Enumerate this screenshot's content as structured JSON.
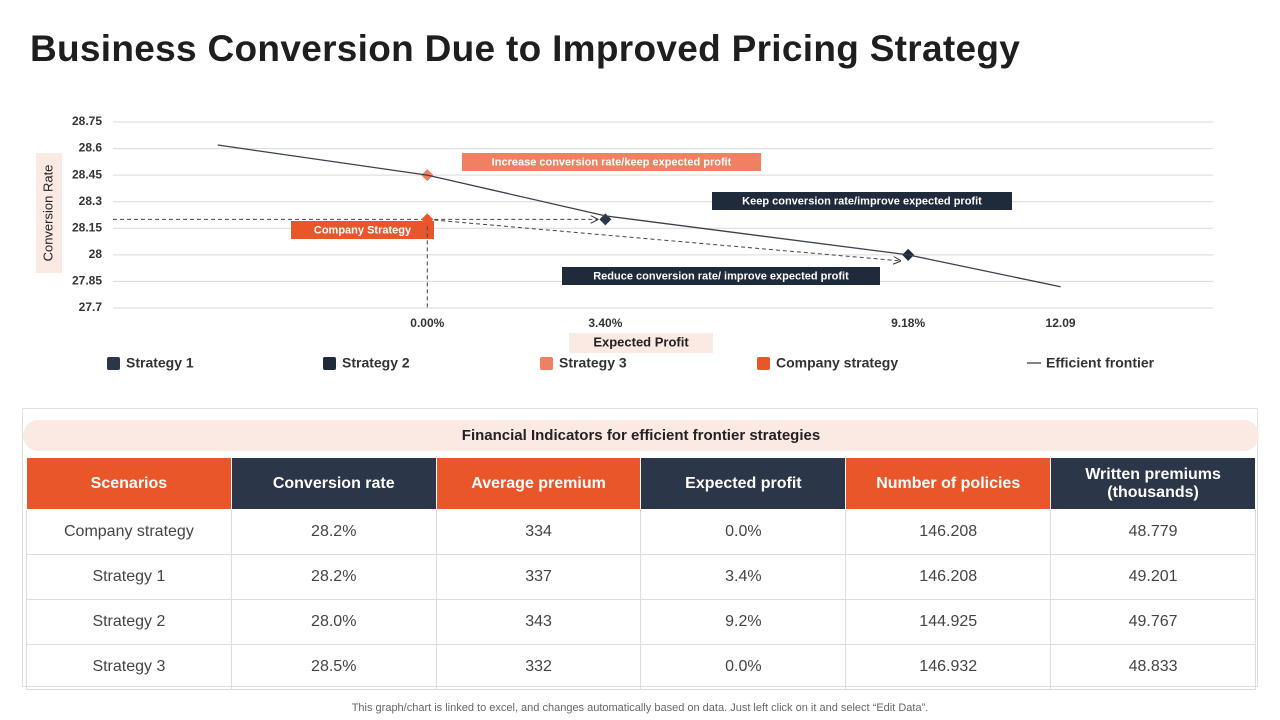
{
  "title": "Business Conversion Due to Improved Pricing Strategy",
  "chart_data": {
    "type": "scatter",
    "x_label": "Expected Profit",
    "y_label": "Conversion Rate",
    "xlim": [
      -6,
      15
    ],
    "xticks": [
      {
        "value": 0,
        "label": "0.00%"
      },
      {
        "value": 3.4,
        "label": "3.40%"
      },
      {
        "value": 9.18,
        "label": "9.18%"
      },
      12.09
    ],
    "ylim": [
      27.7,
      28.75
    ],
    "yticks": [
      27.7,
      27.85,
      28,
      28.15,
      28.3,
      28.45,
      28.6,
      28.75
    ],
    "grid": true,
    "series": [
      {
        "name": "Strategy 1",
        "type": "scatter",
        "color": "#2b3648",
        "x": [
          3.4
        ],
        "values": [
          28.2
        ]
      },
      {
        "name": "Strategy 2",
        "type": "scatter",
        "color": "#1f2a3a",
        "x": [
          9.18
        ],
        "values": [
          28
        ]
      },
      {
        "name": "Strategy 3",
        "type": "scatter",
        "color": "#f08062",
        "x": [
          0
        ],
        "values": [
          28.45
        ]
      },
      {
        "name": "Company strategy",
        "type": "scatter",
        "color": "#e8562a",
        "x": [
          0
        ],
        "values": [
          28.2
        ]
      },
      {
        "name": "Efficient frontier",
        "type": "line",
        "color": "#3a3f4a",
        "x": [
          -4,
          0,
          3.4,
          9.18,
          12.09
        ],
        "values": [
          28.62,
          28.45,
          28.22,
          28,
          27.82
        ]
      }
    ],
    "annotations": [
      {
        "text": "Increase conversion rate/keep expected profit",
        "color": "#f08062"
      },
      {
        "text": "Keep conversion rate/improve expected profit",
        "color": "#1f2a3a"
      },
      {
        "text": "Reduce conversion rate/ improve expected profit",
        "color": "#1f2a3a"
      },
      {
        "text": "Company Strategy",
        "color": "#e8562a"
      }
    ]
  },
  "table": {
    "title": "Financial Indicators for efficient frontier strategies",
    "header": [
      "Scenarios",
      "Conversion rate",
      "Average premium",
      "Expected profit",
      "Number of policies",
      "Written premiums (thousands)"
    ],
    "rows": [
      [
        "Company strategy",
        "28.2%",
        "334",
        "0.0%",
        "146.208",
        "48.779"
      ],
      [
        "Strategy 1",
        "28.2%",
        "337",
        "3.4%",
        "146.208",
        "49.201"
      ],
      [
        "Strategy 2",
        "28.0%",
        "343",
        "9.2%",
        "144.925",
        "49.767"
      ],
      [
        "Strategy 3",
        "28.5%",
        "332",
        "0.0%",
        "146.932",
        "48.833"
      ]
    ]
  },
  "footer": "This graph/chart is linked to excel, and changes automatically based on data. Just left click on it and select “Edit Data”."
}
